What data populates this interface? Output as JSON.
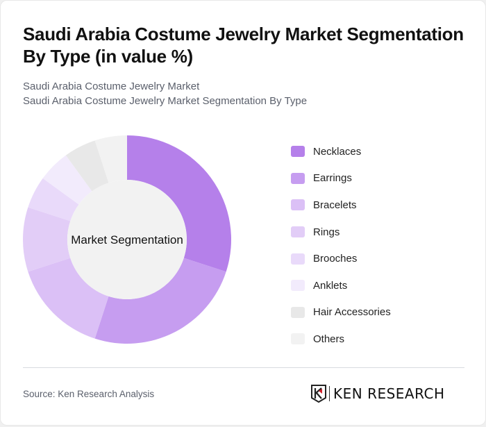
{
  "header": {
    "title": "Saudi Arabia Costume Jewelry Market Segmentation By Type (in value %)",
    "subtitle_line1": "Saudi Arabia Costume Jewelry Market",
    "subtitle_line2": "Saudi Arabia Costume Jewelry Market Segmentation By Type"
  },
  "chart": {
    "center_label": "Market Segmentation"
  },
  "legend": {
    "items": [
      {
        "label": "Necklaces",
        "color": "#b580ea"
      },
      {
        "label": "Earrings",
        "color": "#c69df0"
      },
      {
        "label": "Bracelets",
        "color": "#dbc0f6"
      },
      {
        "label": "Rings",
        "color": "#e2cdf7"
      },
      {
        "label": "Brooches",
        "color": "#e9dafa"
      },
      {
        "label": "Anklets",
        "color": "#f2ebfc"
      },
      {
        "label": "Hair Accessories",
        "color": "#e8e8e8"
      },
      {
        "label": "Others",
        "color": "#f2f2f2"
      }
    ]
  },
  "footer": {
    "source": "Source: Ken Research Analysis",
    "logo_text": "KEN RESEARCH"
  },
  "chart_data": {
    "type": "pie",
    "variant": "donut",
    "title": "Saudi Arabia Costume Jewelry Market Segmentation By Type (in value %)",
    "subtitle": "Saudi Arabia Costume Jewelry Market Segmentation By Type",
    "center_label": "Market Segmentation",
    "categories": [
      "Necklaces",
      "Earrings",
      "Bracelets",
      "Rings",
      "Brooches",
      "Anklets",
      "Hair Accessories",
      "Others"
    ],
    "values": [
      30,
      25,
      15,
      10,
      5,
      5,
      5,
      5
    ],
    "colors": [
      "#b580ea",
      "#c69df0",
      "#dbc0f6",
      "#e2cdf7",
      "#e9dafa",
      "#f2ebfc",
      "#e8e8e8",
      "#f2f2f2"
    ],
    "legend_position": "right",
    "start_angle": "top, clockwise",
    "unit": "%"
  }
}
